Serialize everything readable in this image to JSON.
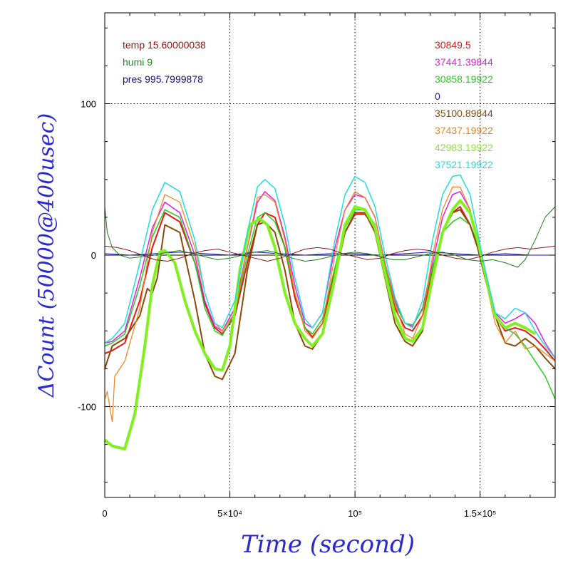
{
  "chart_data": {
    "type": "line",
    "xlabel": "Time (second)",
    "ylabel": "ΔCount (50000@400usec)",
    "xlim": [
      0,
      180000
    ],
    "ylim": [
      -160,
      160
    ],
    "grid": true,
    "x_ticks": [
      {
        "value": 0,
        "label": "0"
      },
      {
        "value": 50000,
        "label": "5×10⁴"
      },
      {
        "value": 100000,
        "label": "10⁵"
      },
      {
        "value": 150000,
        "label": "1.5×10⁵"
      }
    ],
    "y_ticks": [
      {
        "value": 100,
        "label": "100"
      },
      {
        "value": 0,
        "label": "0"
      },
      {
        "value": -100,
        "label": "-100"
      }
    ],
    "info_left": [
      {
        "text": "temp 15.60000038",
        "color": "#9b1010"
      },
      {
        "text": "humi 9",
        "color": "#1e8a1e"
      },
      {
        "text": "pres 995.7999878",
        "color": "#101080"
      }
    ],
    "series": [
      {
        "name": "30849.5",
        "color": "#e01818",
        "width": 2,
        "x": [
          0,
          3000,
          8000,
          14000,
          19000,
          24000,
          30000,
          36000,
          40000,
          44000,
          47000,
          52000,
          57000,
          61000,
          64000,
          68000,
          72000,
          76000,
          80000,
          83000,
          87000,
          92000,
          96000,
          100000,
          104000,
          108000,
          112000,
          116000,
          120000,
          123000,
          127000,
          131000,
          135000,
          139000,
          142000,
          146000,
          149000,
          152000,
          156000,
          160000,
          164000,
          168000,
          172000,
          176000,
          180000
        ],
        "y": [
          -65,
          -63,
          -58,
          -30,
          5,
          28,
          22,
          -5,
          -32,
          -48,
          -52,
          -40,
          -5,
          20,
          28,
          25,
          5,
          -28,
          -48,
          -54,
          -45,
          -10,
          15,
          27,
          27,
          18,
          -10,
          -35,
          -48,
          -50,
          -40,
          -10,
          15,
          28,
          32,
          20,
          5,
          -15,
          -40,
          -50,
          -48,
          -50,
          -55,
          -62,
          -70
        ]
      },
      {
        "name": "37441.39844",
        "color": "#e020e0",
        "width": 1.5,
        "x": [
          0,
          3000,
          8000,
          14000,
          19000,
          24000,
          30000,
          36000,
          40000,
          44000,
          47000,
          52000,
          57000,
          61000,
          64000,
          68000,
          72000,
          76000,
          80000,
          83000,
          87000,
          92000,
          96000,
          100000,
          104000,
          108000,
          112000,
          116000,
          120000,
          123000,
          127000,
          131000,
          135000,
          139000,
          142000,
          146000,
          149000,
          152000,
          156000,
          160000,
          164000,
          168000,
          172000,
          176000,
          180000
        ],
        "y": [
          -58,
          -57,
          -50,
          -15,
          18,
          35,
          28,
          0,
          -30,
          -47,
          -50,
          -35,
          5,
          35,
          42,
          36,
          12,
          -20,
          -45,
          -48,
          -38,
          5,
          30,
          40,
          38,
          25,
          -5,
          -30,
          -45,
          -47,
          -35,
          -5,
          25,
          40,
          42,
          30,
          10,
          -15,
          -38,
          -45,
          -42,
          -38,
          -45,
          -58,
          -68
        ]
      },
      {
        "name": "30858.19922",
        "color": "#22d022",
        "width": 1.5,
        "x": [
          0,
          3000,
          8000,
          14000,
          19000,
          24000,
          30000,
          36000,
          40000,
          44000,
          47000,
          52000,
          57000,
          61000,
          64000,
          68000,
          72000,
          76000,
          80000,
          83000,
          87000,
          92000,
          96000,
          100000,
          104000,
          108000,
          112000,
          116000,
          120000,
          123000,
          127000,
          131000,
          135000,
          139000,
          142000,
          146000,
          149000,
          152000,
          156000,
          160000,
          164000,
          168000,
          172000,
          176000,
          180000
        ],
        "y": [
          -60,
          -58,
          -52,
          -20,
          12,
          30,
          25,
          -5,
          -35,
          -50,
          -53,
          -38,
          0,
          25,
          28,
          22,
          5,
          -25,
          -48,
          -52,
          -42,
          -8,
          18,
          30,
          30,
          20,
          -8,
          -32,
          -45,
          -46,
          -36,
          -8,
          15,
          22,
          25,
          20,
          8,
          -15,
          -40,
          -48,
          -52,
          -60,
          -70,
          -80,
          -95
        ]
      },
      {
        "name": "0",
        "color": "#1414b4",
        "width": 1,
        "x": [
          0,
          10000,
          20000,
          30000,
          40000,
          50000,
          60000,
          70000,
          80000,
          90000,
          100000,
          110000,
          120000,
          130000,
          140000,
          150000,
          160000,
          170000,
          180000
        ],
        "y": [
          1,
          0,
          1,
          2,
          1,
          0,
          2,
          1,
          0,
          1,
          1,
          0,
          1,
          2,
          1,
          0,
          1,
          0,
          0
        ]
      },
      {
        "name": "35100.89844",
        "color": "#8a4a08",
        "width": 2,
        "x": [
          0,
          3000,
          8000,
          14000,
          17000,
          19000,
          21000,
          24000,
          30000,
          36000,
          40000,
          44000,
          47000,
          52000,
          57000,
          61000,
          64000,
          68000,
          72000,
          76000,
          80000,
          83000,
          87000,
          92000,
          96000,
          100000,
          104000,
          108000,
          112000,
          116000,
          120000,
          123000,
          127000,
          131000,
          135000,
          139000,
          142000,
          146000,
          149000,
          152000,
          156000,
          160000,
          164000,
          168000,
          172000,
          176000,
          180000
        ],
        "y": [
          -75,
          -60,
          -55,
          -40,
          -22,
          -25,
          -15,
          20,
          15,
          -30,
          -65,
          -80,
          -82,
          -65,
          -10,
          20,
          22,
          15,
          -10,
          -45,
          -60,
          -62,
          -52,
          -15,
          15,
          28,
          28,
          15,
          -15,
          -45,
          -57,
          -60,
          -50,
          -15,
          15,
          28,
          30,
          20,
          5,
          -15,
          -40,
          -58,
          -60,
          -55,
          -60,
          -68,
          -75
        ]
      },
      {
        "name": "37437.19922",
        "color": "#f08018",
        "width": 1.2,
        "x": [
          0,
          1000,
          3000,
          4000,
          8000,
          14000,
          19000,
          24000,
          30000,
          36000,
          40000,
          44000,
          47000,
          52000,
          57000,
          61000,
          64000,
          68000,
          72000,
          76000,
          80000,
          83000,
          87000,
          92000,
          96000,
          100000,
          104000,
          108000,
          112000,
          116000,
          120000,
          123000,
          127000,
          131000,
          135000,
          139000,
          142000,
          146000,
          149000,
          152000,
          156000,
          160000,
          164000,
          168000,
          172000,
          176000,
          180000
        ],
        "y": [
          -95,
          -90,
          -110,
          -80,
          -70,
          -35,
          15,
          40,
          35,
          5,
          -25,
          -45,
          -50,
          -38,
          5,
          38,
          40,
          35,
          10,
          -25,
          -50,
          -55,
          -45,
          0,
          30,
          42,
          38,
          25,
          -5,
          -32,
          -52,
          -55,
          -40,
          0,
          30,
          45,
          45,
          30,
          8,
          -15,
          -45,
          -58,
          -50,
          -62,
          -60,
          -65,
          -70
        ]
      },
      {
        "name": "42983.19922",
        "color": "#80f020",
        "width": 4,
        "x": [
          0,
          3000,
          8000,
          12000,
          16000,
          19000,
          22000,
          24000,
          28000,
          32000,
          36000,
          40000,
          44000,
          47000,
          50000,
          54000,
          58000,
          62000,
          65000,
          68000,
          72000,
          76000,
          80000,
          83000,
          87000,
          92000,
          96000,
          100000,
          104000,
          108000,
          112000,
          116000,
          120000,
          123000,
          127000,
          131000,
          135000,
          139000,
          142000,
          146000,
          149000,
          152000,
          156000,
          160000,
          164000,
          168000,
          172000
        ],
        "y": [
          -122,
          -126,
          -128,
          -105,
          -60,
          -20,
          2,
          3,
          -5,
          -30,
          -50,
          -65,
          -75,
          -76,
          -60,
          -10,
          20,
          24,
          20,
          5,
          -25,
          -45,
          -55,
          -60,
          -52,
          -15,
          20,
          32,
          30,
          18,
          -12,
          -40,
          -55,
          -57,
          -48,
          -15,
          15,
          30,
          36,
          28,
          10,
          -12,
          -40,
          -48,
          -45,
          -48,
          -52
        ]
      },
      {
        "name": "37521.19922",
        "color": "#22dcdc",
        "width": 1.5,
        "x": [
          0,
          3000,
          8000,
          14000,
          19000,
          24000,
          30000,
          36000,
          40000,
          44000,
          47000,
          52000,
          57000,
          61000,
          64000,
          68000,
          72000,
          76000,
          80000,
          83000,
          87000,
          92000,
          96000,
          100000,
          104000,
          108000,
          112000,
          116000,
          120000,
          123000,
          127000,
          131000,
          135000,
          139000,
          142000,
          146000,
          149000,
          152000,
          156000,
          160000,
          164000,
          168000,
          172000,
          176000,
          180000
        ],
        "y": [
          -58,
          -55,
          -45,
          -5,
          30,
          48,
          42,
          10,
          -25,
          -45,
          -48,
          -30,
          15,
          45,
          50,
          44,
          20,
          -15,
          -42,
          -48,
          -38,
          10,
          40,
          52,
          48,
          32,
          0,
          -28,
          -45,
          -48,
          -30,
          10,
          40,
          52,
          53,
          40,
          15,
          -10,
          -38,
          -42,
          -35,
          -38,
          -50,
          -60,
          -68
        ]
      },
      {
        "name": "temp",
        "color": "#8b1a1a",
        "width": 1,
        "legend": false,
        "x": [
          0,
          5000,
          10000,
          15000,
          20000,
          25000,
          30000,
          35000,
          40000,
          45000,
          50000,
          55000,
          60000,
          65000,
          70000,
          75000,
          80000,
          85000,
          90000,
          95000,
          100000,
          105000,
          110000,
          115000,
          120000,
          125000,
          130000,
          135000,
          140000,
          145000,
          150000,
          155000,
          160000,
          165000,
          170000,
          175000,
          180000
        ],
        "y": [
          6,
          5,
          3,
          0,
          -3,
          -4,
          -2,
          1,
          3,
          4,
          2,
          0,
          -2,
          -4,
          -2,
          1,
          4,
          5,
          4,
          1,
          -1,
          -3,
          -2,
          1,
          3,
          4,
          3,
          0,
          -2,
          -3,
          -1,
          2,
          4,
          5,
          4,
          5,
          6
        ]
      },
      {
        "name": "humi",
        "color": "#1e7a1e",
        "width": 1,
        "legend": false,
        "x": [
          0,
          1000,
          3000,
          6000,
          10000,
          15000,
          20000,
          25000,
          30000,
          35000,
          40000,
          45000,
          50000,
          55000,
          60000,
          65000,
          70000,
          75000,
          80000,
          85000,
          90000,
          95000,
          100000,
          105000,
          110000,
          115000,
          120000,
          125000,
          130000,
          135000,
          140000,
          145000,
          150000,
          155000,
          160000,
          165000,
          168000,
          172000,
          176000,
          180000
        ],
        "y": [
          32,
          15,
          5,
          0,
          -2,
          -1,
          0,
          2,
          3,
          1,
          -1,
          -3,
          -2,
          0,
          2,
          3,
          1,
          -2,
          -4,
          -3,
          -1,
          1,
          2,
          1,
          -1,
          -3,
          -3,
          -1,
          1,
          2,
          0,
          -3,
          -4,
          -3,
          -5,
          -8,
          -3,
          10,
          25,
          32
        ]
      }
    ]
  }
}
